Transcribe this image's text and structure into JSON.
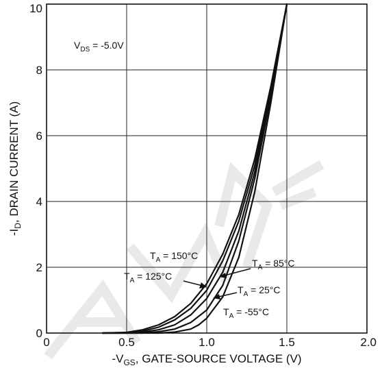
{
  "chart_data": {
    "type": "line",
    "title": "",
    "xlabel": {
      "main": "-V",
      "sub": "GS",
      "rest": ", GATE-SOURCE VOLTAGE (V)"
    },
    "ylabel": {
      "main": "-I",
      "sub": "D",
      "rest": ", DRAIN CURRENT (A)"
    },
    "xlim": [
      0,
      2.0
    ],
    "ylim": [
      0,
      10
    ],
    "xticks": [
      0,
      0.5,
      1.0,
      1.5,
      2.0
    ],
    "xtick_labels": [
      "0",
      "0.5",
      "1.0",
      "1.5",
      "2.0"
    ],
    "yticks": [
      0,
      2,
      4,
      6,
      8,
      10
    ],
    "ytick_labels": [
      "0",
      "2",
      "4",
      "6",
      "8",
      "10"
    ],
    "grid": true,
    "condition": {
      "main": "V",
      "sub": "DS",
      "rest": " = -5.0V"
    },
    "series": [
      {
        "name": {
          "main": "T",
          "sub": "A",
          "rest": " = 150°C"
        },
        "x": [
          0.35,
          0.5,
          0.6,
          0.7,
          0.8,
          0.9,
          1.0,
          1.1,
          1.2,
          1.3,
          1.4,
          1.5
        ],
        "y": [
          0.0,
          0.02,
          0.1,
          0.25,
          0.5,
          0.9,
          1.5,
          2.4,
          3.6,
          5.3,
          7.5,
          10.0
        ]
      },
      {
        "name": {
          "main": "T",
          "sub": "A",
          "rest": " = 125°C"
        },
        "x": [
          0.35,
          0.5,
          0.6,
          0.7,
          0.8,
          0.9,
          1.0,
          1.1,
          1.2,
          1.3,
          1.4,
          1.5
        ],
        "y": [
          0.0,
          0.01,
          0.06,
          0.18,
          0.4,
          0.75,
          1.3,
          2.2,
          3.4,
          5.1,
          7.4,
          10.0
        ]
      },
      {
        "name": {
          "main": "T",
          "sub": "A",
          "rest": " = 85°C"
        },
        "x": [
          0.35,
          0.5,
          0.6,
          0.7,
          0.8,
          0.9,
          1.0,
          1.1,
          1.2,
          1.3,
          1.4,
          1.5
        ],
        "y": [
          0.0,
          0.0,
          0.03,
          0.1,
          0.25,
          0.55,
          1.05,
          1.85,
          3.1,
          4.9,
          7.3,
          10.0
        ]
      },
      {
        "name": {
          "main": "T",
          "sub": "A",
          "rest": " = 25°C"
        },
        "x": [
          0.35,
          0.6,
          0.7,
          0.8,
          0.9,
          1.0,
          1.1,
          1.2,
          1.3,
          1.4,
          1.5
        ],
        "y": [
          0.0,
          0.0,
          0.04,
          0.12,
          0.32,
          0.7,
          1.45,
          2.8,
          4.7,
          7.2,
          10.0
        ]
      },
      {
        "name": {
          "main": "T",
          "sub": "A",
          "rest": " = -55°C"
        },
        "x": [
          0.35,
          0.7,
          0.8,
          0.9,
          0.95,
          1.0,
          1.1,
          1.2,
          1.3,
          1.4,
          1.5
        ],
        "y": [
          0.0,
          0.0,
          0.03,
          0.12,
          0.25,
          0.45,
          1.1,
          2.3,
          4.3,
          7.0,
          10.0
        ]
      }
    ]
  },
  "watermark": "AMENDED"
}
